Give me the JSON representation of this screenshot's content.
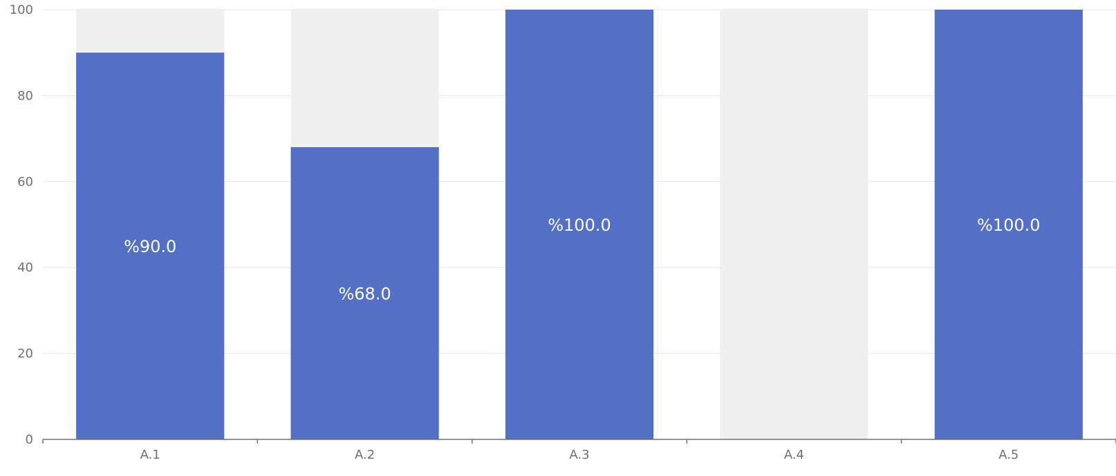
{
  "chart_data": {
    "type": "bar",
    "categories": [
      "A.1",
      "A.2",
      "A.3",
      "A.4",
      "A.5"
    ],
    "values": [
      90,
      68,
      100,
      0,
      100
    ],
    "background_max": 100,
    "data_labels": [
      "%90.0",
      "%68.0",
      "%100.0",
      "",
      "%100.0"
    ],
    "ylim": [
      0,
      100
    ],
    "yticks": [
      "0",
      "20",
      "40",
      "60",
      "80",
      "100"
    ],
    "grid": true,
    "colors": {
      "bar": "#5470c6",
      "background_bar": "#f0f0f0",
      "grid": "#e0e6f1",
      "axis": "#6e7079"
    }
  }
}
